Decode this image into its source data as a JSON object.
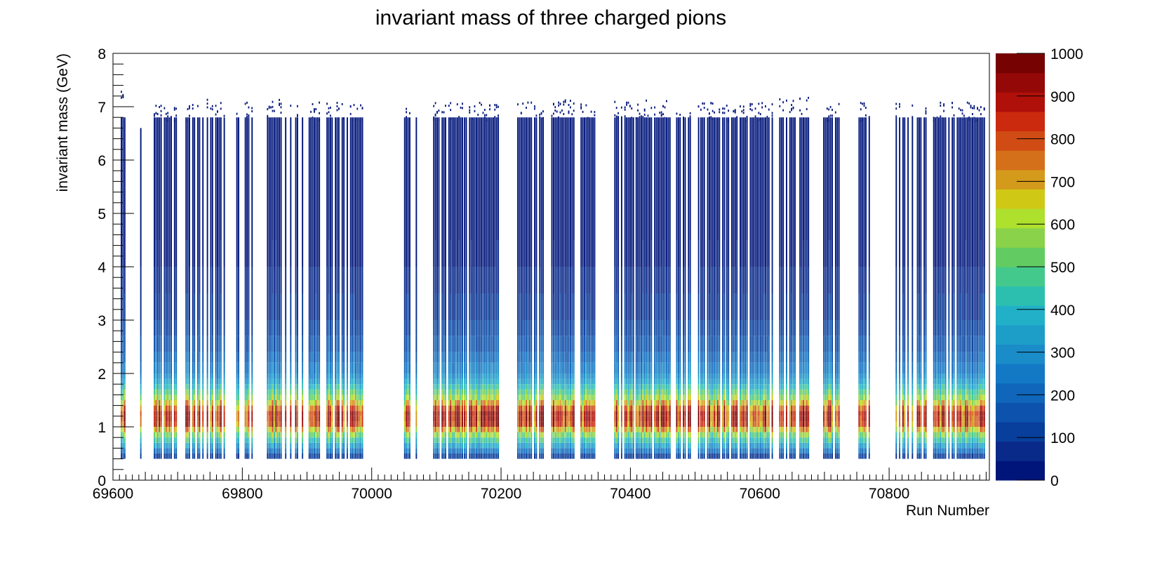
{
  "chart_data": {
    "type": "heatmap",
    "title": "invariant mass of three charged pions",
    "xlabel": "Run Number",
    "ylabel": "invariant mass (GeV)",
    "xlim": [
      69600,
      70955
    ],
    "ylim": [
      0,
      8
    ],
    "x_ticks": [
      69600,
      69800,
      70000,
      70200,
      70400,
      70600,
      70800
    ],
    "y_ticks": [
      0,
      1,
      2,
      3,
      4,
      5,
      6,
      7,
      8
    ],
    "z_ticks": [
      0,
      100,
      200,
      300,
      400,
      500,
      600,
      700,
      800,
      900,
      1000
    ],
    "zlim": [
      0,
      1000
    ],
    "grid": false,
    "palette": [
      "#00157a",
      "#0a2a8a",
      "#083e9c",
      "#0d53ad",
      "#0f66ba",
      "#1379c5",
      "#1a8cc8",
      "#1d9ec9",
      "#21b0c7",
      "#2cbfb0",
      "#44c98c",
      "#62cc62",
      "#8ad24a",
      "#aee02e",
      "#cfc916",
      "#d49a1c",
      "#d5701a",
      "#d04c14",
      "#cc2a0e",
      "#b0100a",
      "#940808",
      "#760202"
    ],
    "run_clusters": [
      {
        "x_start": 69612,
        "x_end": 69618,
        "density": 0.8,
        "top_mass": 7.0
      },
      {
        "x_start": 69642,
        "x_end": 69651,
        "density": 0.6,
        "top_mass": 6.6
      },
      {
        "x_start": 69663,
        "x_end": 69698,
        "density": 0.8,
        "top_mass": 6.8
      },
      {
        "x_start": 69712,
        "x_end": 69740,
        "density": 0.65,
        "top_mass": 6.8
      },
      {
        "x_start": 69745,
        "x_end": 69772,
        "density": 0.7,
        "top_mass": 6.85
      },
      {
        "x_start": 69788,
        "x_end": 69818,
        "density": 0.5,
        "top_mass": 6.8
      },
      {
        "x_start": 69838,
        "x_end": 69860,
        "density": 1.0,
        "top_mass": 6.85
      },
      {
        "x_start": 69866,
        "x_end": 69925,
        "density": 0.7,
        "top_mass": 6.8
      },
      {
        "x_start": 69930,
        "x_end": 69985,
        "density": 0.75,
        "top_mass": 6.8
      },
      {
        "x_start": 70050,
        "x_end": 70058,
        "density": 0.6,
        "top_mass": 6.8
      },
      {
        "x_start": 70068,
        "x_end": 70072,
        "density": 0.7,
        "top_mass": 6.8
      },
      {
        "x_start": 70095,
        "x_end": 70140,
        "density": 0.85,
        "top_mass": 6.8
      },
      {
        "x_start": 70140,
        "x_end": 70195,
        "density": 0.75,
        "top_mass": 6.8
      },
      {
        "x_start": 70225,
        "x_end": 70265,
        "density": 0.95,
        "top_mass": 6.8
      },
      {
        "x_start": 70275,
        "x_end": 70312,
        "density": 0.85,
        "top_mass": 6.85
      },
      {
        "x_start": 70315,
        "x_end": 70345,
        "density": 0.8,
        "top_mass": 6.8
      },
      {
        "x_start": 70375,
        "x_end": 70405,
        "density": 0.75,
        "top_mass": 6.85
      },
      {
        "x_start": 70408,
        "x_end": 70462,
        "density": 0.95,
        "top_mass": 6.85
      },
      {
        "x_start": 70468,
        "x_end": 70505,
        "density": 0.75,
        "top_mass": 6.8
      },
      {
        "x_start": 70508,
        "x_end": 70545,
        "density": 0.7,
        "top_mass": 6.8
      },
      {
        "x_start": 70548,
        "x_end": 70620,
        "density": 0.9,
        "top_mass": 6.8
      },
      {
        "x_start": 70630,
        "x_end": 70678,
        "density": 0.85,
        "top_mass": 6.9
      },
      {
        "x_start": 70698,
        "x_end": 70722,
        "density": 0.75,
        "top_mass": 6.8
      },
      {
        "x_start": 70750,
        "x_end": 70770,
        "density": 0.7,
        "top_mass": 6.8
      },
      {
        "x_start": 70810,
        "x_end": 70830,
        "density": 0.7,
        "top_mass": 6.8
      },
      {
        "x_start": 70835,
        "x_end": 70858,
        "density": 0.65,
        "top_mass": 6.8
      },
      {
        "x_start": 70868,
        "x_end": 70948,
        "density": 0.9,
        "top_mass": 6.8
      }
    ],
    "mass_profile": [
      {
        "mass_low": 0.4,
        "mass_high": 0.5,
        "counts": 120
      },
      {
        "mass_low": 0.5,
        "mass_high": 0.6,
        "counts": 260
      },
      {
        "mass_low": 0.6,
        "mass_high": 0.7,
        "counts": 380
      },
      {
        "mass_low": 0.7,
        "mass_high": 0.8,
        "counts": 500
      },
      {
        "mass_low": 0.8,
        "mass_high": 0.9,
        "counts": 620
      },
      {
        "mass_low": 0.9,
        "mass_high": 1.0,
        "counts": 780
      },
      {
        "mass_low": 1.0,
        "mass_high": 1.1,
        "counts": 950
      },
      {
        "mass_low": 1.1,
        "mass_high": 1.2,
        "counts": 980
      },
      {
        "mass_low": 1.2,
        "mass_high": 1.3,
        "counts": 990
      },
      {
        "mass_low": 1.3,
        "mass_high": 1.4,
        "counts": 900
      },
      {
        "mass_low": 1.4,
        "mass_high": 1.5,
        "counts": 760
      },
      {
        "mass_low": 1.5,
        "mass_high": 1.6,
        "counts": 640
      },
      {
        "mass_low": 1.6,
        "mass_high": 1.7,
        "counts": 560
      },
      {
        "mass_low": 1.7,
        "mass_high": 1.8,
        "counts": 470
      },
      {
        "mass_low": 1.8,
        "mass_high": 1.9,
        "counts": 390
      },
      {
        "mass_low": 1.9,
        "mass_high": 2.0,
        "counts": 330
      },
      {
        "mass_low": 2.0,
        "mass_high": 2.2,
        "counts": 280
      },
      {
        "mass_low": 2.2,
        "mass_high": 2.4,
        "counts": 230
      },
      {
        "mass_low": 2.4,
        "mass_high": 2.7,
        "counts": 180
      },
      {
        "mass_low": 2.7,
        "mass_high": 3.0,
        "counts": 140
      },
      {
        "mass_low": 3.0,
        "mass_high": 3.5,
        "counts": 100
      },
      {
        "mass_low": 3.5,
        "mass_high": 4.0,
        "counts": 70
      },
      {
        "mass_low": 4.0,
        "mass_high": 4.5,
        "counts": 45
      },
      {
        "mass_low": 4.5,
        "mass_high": 5.0,
        "counts": 30
      },
      {
        "mass_low": 5.0,
        "mass_high": 6.0,
        "counts": 15
      },
      {
        "mass_low": 6.0,
        "mass_high": 6.8,
        "counts": 5
      }
    ]
  }
}
